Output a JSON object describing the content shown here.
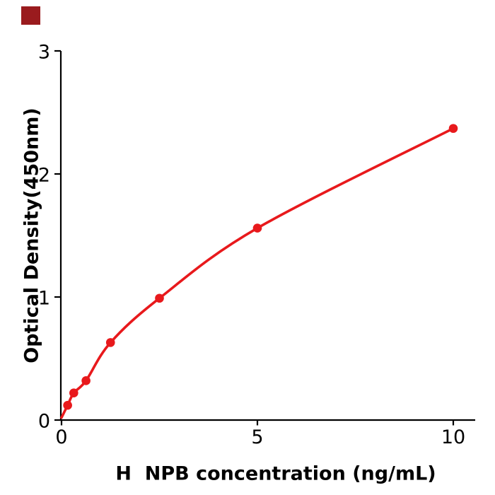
{
  "figure": {
    "background": "#ffffff",
    "logo_color": "#9a1b1e"
  },
  "chart_data": {
    "type": "line",
    "title": "",
    "xlabel": "H  NPB concentration (ng/mL)",
    "ylabel": "Optical Density(450nm)",
    "x": [
      0,
      0.156,
      0.3125,
      0.625,
      1.25,
      2.5,
      5,
      10
    ],
    "y": [
      0.02,
      0.12,
      0.22,
      0.32,
      0.63,
      0.99,
      1.56,
      2.37
    ],
    "marker_shown": [
      false,
      true,
      true,
      true,
      true,
      true,
      true,
      true
    ],
    "xticks": [
      0,
      5,
      10
    ],
    "yticks": [
      0,
      1,
      2,
      3
    ],
    "xlim": [
      0,
      10.56
    ],
    "ylim": [
      0,
      3
    ],
    "line_color": "#e8191c",
    "marker_color": "#e8191c",
    "axis_color": "#000000",
    "grid": false,
    "legend": null
  }
}
